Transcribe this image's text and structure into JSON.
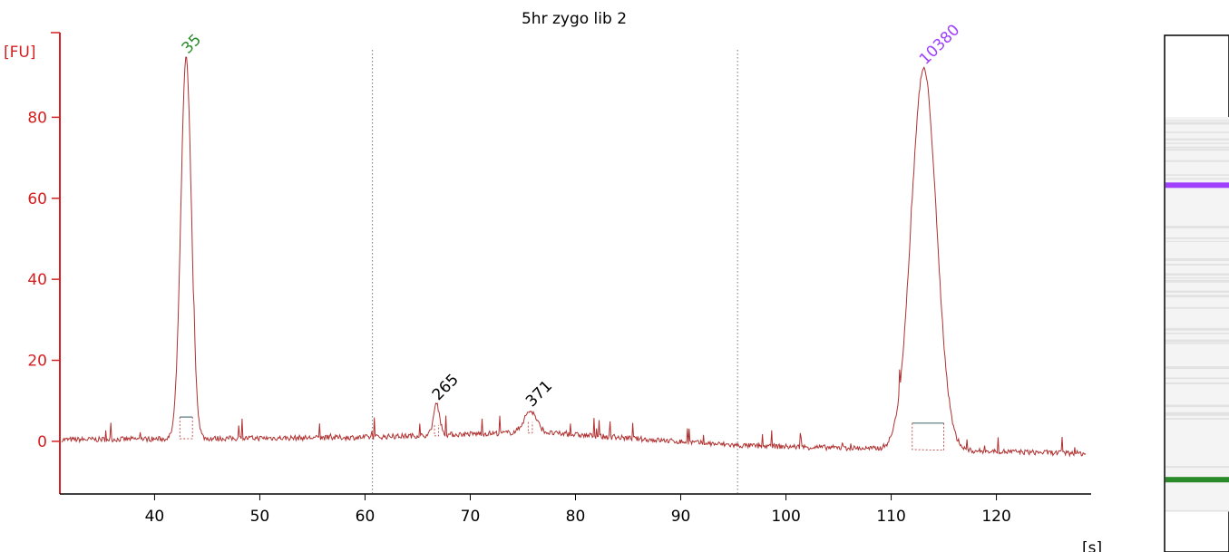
{
  "chart_data": {
    "type": "line",
    "title": "5hr zygo lib 2",
    "xlabel": "[s]",
    "ylabel": "[FU]",
    "xlim": [
      31,
      129
    ],
    "ylim": [
      -13,
      100
    ],
    "x_ticks": [
      40,
      50,
      60,
      70,
      80,
      90,
      100,
      110,
      120
    ],
    "y_ticks": [
      0,
      20,
      40,
      60,
      80
    ],
    "grid": false,
    "markers_vertical": [
      60.7,
      95.4
    ],
    "colors": {
      "axis": "#d42020",
      "trace": "#b03030",
      "marker_35": "#2a8a2a",
      "marker_10380": "#a040ff",
      "peak_label": "#000000",
      "baseline": "#507878"
    },
    "peaks": [
      {
        "label": "35",
        "x": 43.0,
        "height": 94,
        "width": 0.5,
        "label_color": "marker_35"
      },
      {
        "label": "265",
        "x": 66.8,
        "height": 7.5,
        "width": 0.3,
        "label_color": "peak_label"
      },
      {
        "label": "371",
        "x": 75.7,
        "height": 5.2,
        "width": 0.6,
        "label_color": "peak_label"
      },
      {
        "label": "10380",
        "x": 113.1,
        "height": 94,
        "width": 1.2,
        "label_color": "marker_10380"
      }
    ],
    "baseline_segments": [
      {
        "x0": 42.4,
        "x1": 43.6,
        "y": 6
      },
      {
        "x0": 112.0,
        "x1": 115.0,
        "y": 4.5
      }
    ],
    "gel_lane": {
      "bands": [
        {
          "name": "upper-marker",
          "color": "marker_10380",
          "position": 0.29
        },
        {
          "name": "lower-marker",
          "color": "marker_35",
          "position": 0.86
        }
      ]
    }
  }
}
